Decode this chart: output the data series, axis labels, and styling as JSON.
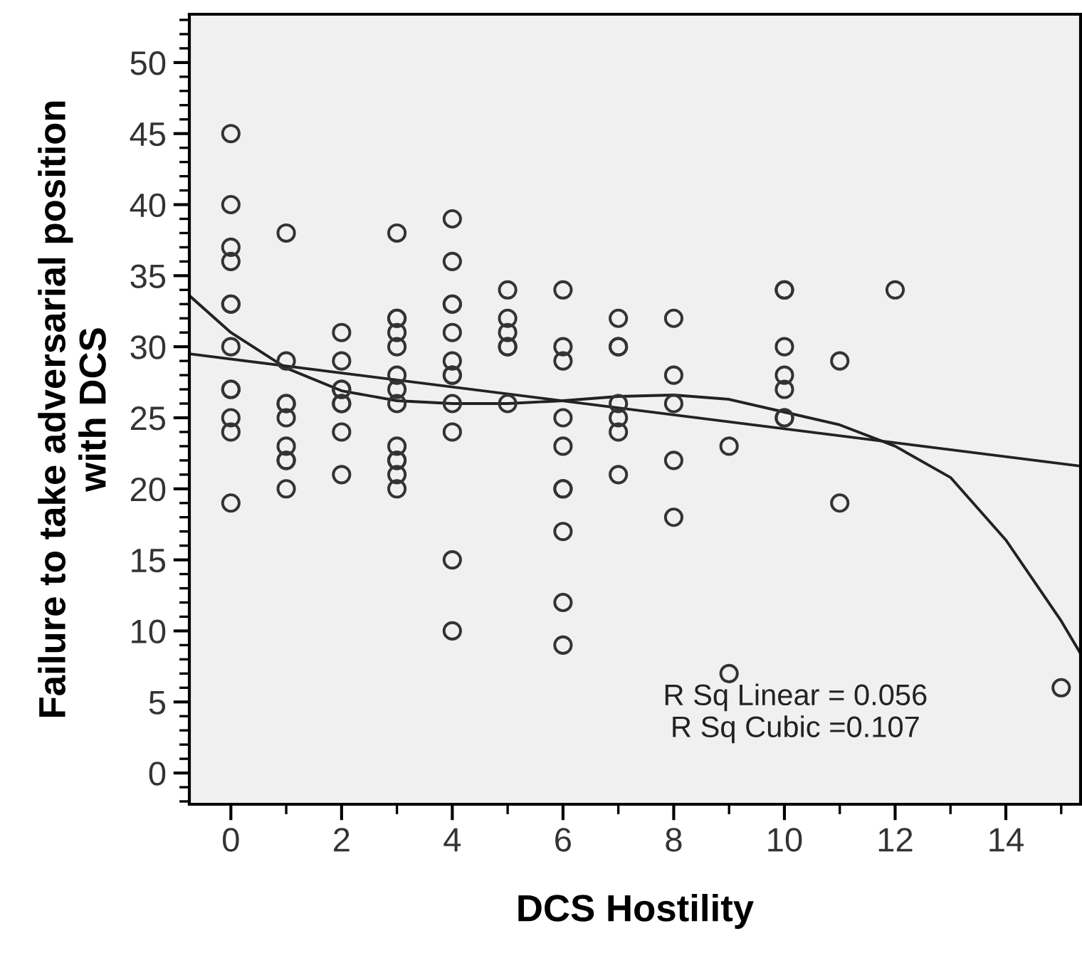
{
  "chart_data": {
    "type": "scatter",
    "xlabel": "DCS Hostility",
    "ylabel": "Failure to take adversarial position\nwith DCS",
    "xlim": [
      -0.75,
      15.35
    ],
    "ylim": [
      -2.2,
      53.4
    ],
    "xticks": [
      0,
      2,
      4,
      6,
      8,
      10,
      12,
      14
    ],
    "yticks": [
      0,
      5,
      10,
      15,
      20,
      25,
      30,
      35,
      40,
      45,
      50
    ],
    "grid": false,
    "marker": "circle",
    "legend": false,
    "annotations": [
      "R Sq Linear = 0.056",
      "R Sq Cubic =0.107"
    ],
    "series": [
      {
        "color": "#333333",
        "x": [
          0,
          0,
          0,
          0,
          0,
          0,
          0,
          0,
          0,
          0,
          0,
          0,
          1,
          1,
          1,
          1,
          1,
          1,
          1,
          1,
          1,
          2,
          2,
          2,
          2,
          2,
          2,
          2,
          2,
          3,
          3,
          3,
          3,
          3,
          3,
          3,
          3,
          3,
          3,
          3,
          3,
          3,
          4,
          4,
          4,
          4,
          4,
          4,
          4,
          4,
          4,
          4,
          4,
          4,
          5,
          5,
          5,
          5,
          5,
          5,
          6,
          6,
          6,
          6,
          6,
          6,
          6,
          6,
          6,
          6,
          7,
          7,
          7,
          7,
          7,
          7,
          7,
          8,
          8,
          8,
          8,
          8,
          9,
          9,
          10,
          10,
          10,
          10,
          10,
          10,
          10,
          11,
          11,
          12,
          15
        ],
        "values": [
          45,
          40,
          37,
          36,
          33,
          33,
          30,
          27,
          27,
          25,
          24,
          19,
          38,
          29,
          26,
          26,
          25,
          23,
          22,
          22,
          20,
          31,
          29,
          27,
          27,
          26,
          26,
          24,
          21,
          38,
          32,
          32,
          31,
          30,
          28,
          27,
          26,
          23,
          22,
          22,
          21,
          20,
          39,
          36,
          33,
          33,
          31,
          29,
          28,
          28,
          26,
          24,
          15,
          10,
          34,
          32,
          31,
          30,
          30,
          26,
          34,
          30,
          29,
          25,
          23,
          20,
          20,
          17,
          12,
          9,
          32,
          30,
          30,
          26,
          25,
          24,
          21,
          32,
          28,
          26,
          22,
          18,
          23,
          7,
          34,
          34,
          30,
          28,
          27,
          25,
          25,
          29,
          19,
          34,
          6
        ]
      },
      {
        "type": "line",
        "color": "#222222",
        "marker": "none",
        "x": [
          -0.75,
          15.35
        ],
        "values": [
          29.5,
          21.6
        ]
      },
      {
        "type": "line",
        "color": "#222222",
        "marker": "none",
        "x": [
          -0.75,
          0,
          1,
          2,
          3,
          4,
          5,
          6,
          7,
          8,
          9,
          10,
          11,
          12,
          13,
          14,
          15,
          15.35
        ],
        "values": [
          33.6,
          31,
          28.5,
          26.9,
          26.2,
          26,
          26,
          26.2,
          26.5,
          26.6,
          26.3,
          25.4,
          24.5,
          23,
          20.8,
          16.4,
          10.7,
          8.4
        ]
      }
    ]
  }
}
